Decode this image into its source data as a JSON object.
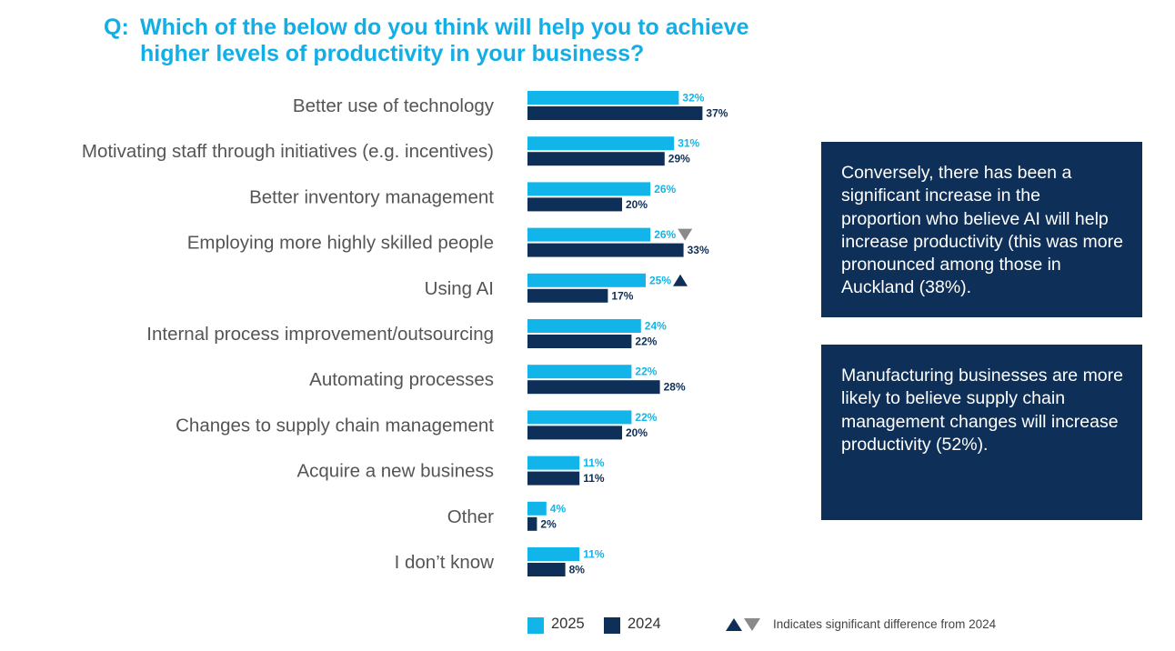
{
  "title": {
    "prefix": "Q:",
    "line1": "Which of the below do you think will help you to achieve",
    "line2": "higher levels of productivity in your business?"
  },
  "colors": {
    "title": "#12aee6",
    "series_2025": "#12b5ea",
    "series_2024": "#0e2f57",
    "sig_down": "#8a8a8a",
    "sig_up": "#0e2f57",
    "callout_bg": "#0e2f57",
    "category_text": "#555555"
  },
  "chart_data": {
    "type": "bar",
    "orientation": "horizontal",
    "categories": [
      "Better use of technology",
      "Motivating staff through initiatives (e.g. incentives)",
      "Better inventory management",
      "Employing more highly skilled people",
      "Using AI",
      "Internal process improvement/outsourcing",
      "Automating processes",
      "Changes to supply chain management",
      "Acquire a new business",
      "Other",
      "I don’t know"
    ],
    "series": [
      {
        "name": "2025",
        "values": [
          32,
          31,
          26,
          26,
          25,
          24,
          22,
          22,
          11,
          4,
          11
        ]
      },
      {
        "name": "2024",
        "values": [
          37,
          29,
          20,
          33,
          17,
          22,
          28,
          20,
          11,
          2,
          8
        ]
      }
    ],
    "value_suffix": "%",
    "significance_2025": [
      "",
      "",
      "",
      "down",
      "up",
      "",
      "",
      "",
      "",
      "",
      ""
    ],
    "legend_position": "bottom",
    "grid": false
  },
  "legend": {
    "label_2025": "2025",
    "label_2024": "2024",
    "sig_text": "Indicates significant difference from 2024"
  },
  "callouts": [
    {
      "text": "Conversely, there has been a significant increase in the proportion who believe AI will help increase productivity (this was more pronounced among those in Auckland (38%)."
    },
    {
      "text": "Manufacturing businesses are more likely to believe supply chain management changes will increase productivity (52%)."
    }
  ]
}
